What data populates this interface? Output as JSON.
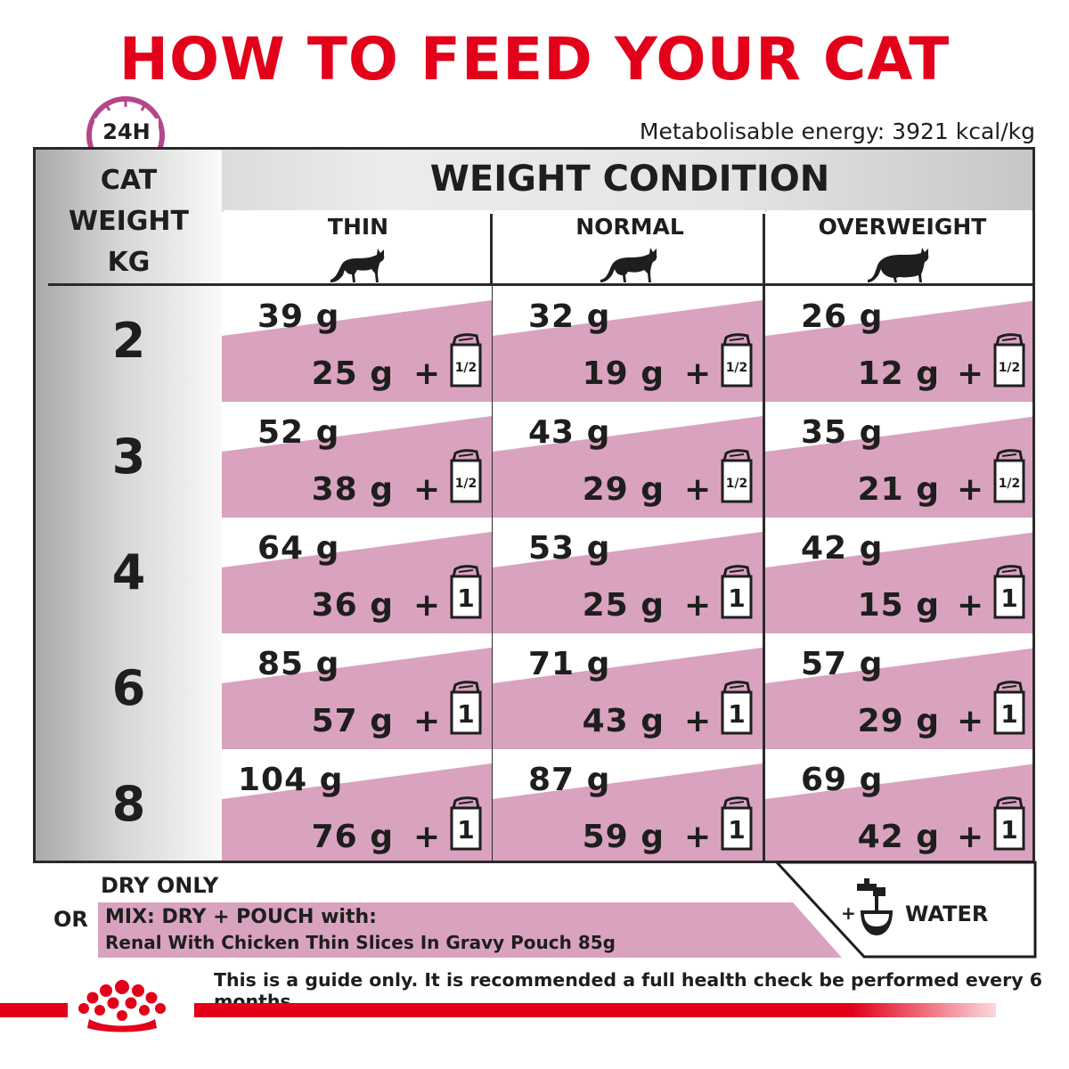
{
  "title": "HOW TO FEED YOUR CAT",
  "energy": "Metabolisable energy: 3921 kcal/kg",
  "clock_label": "24H",
  "table": {
    "condition_title": "WEIGHT CONDITION",
    "weight_header": [
      "CAT",
      "WEIGHT",
      "KG"
    ],
    "columns": [
      "THIN",
      "NORMAL",
      "OVERWEIGHT"
    ],
    "rows": [
      {
        "weight": "2",
        "cells": [
          {
            "dry": "39 g",
            "mix": "25 g",
            "pouch": "1/2"
          },
          {
            "dry": "32 g",
            "mix": "19 g",
            "pouch": "1/2"
          },
          {
            "dry": "26 g",
            "mix": "12 g",
            "pouch": "1/2"
          }
        ]
      },
      {
        "weight": "3",
        "cells": [
          {
            "dry": "52 g",
            "mix": "38 g",
            "pouch": "1/2"
          },
          {
            "dry": "43 g",
            "mix": "29 g",
            "pouch": "1/2"
          },
          {
            "dry": "35 g",
            "mix": "21 g",
            "pouch": "1/2"
          }
        ]
      },
      {
        "weight": "4",
        "cells": [
          {
            "dry": "64 g",
            "mix": "36 g",
            "pouch": "1"
          },
          {
            "dry": "53 g",
            "mix": "25 g",
            "pouch": "1"
          },
          {
            "dry": "42 g",
            "mix": "15 g",
            "pouch": "1"
          }
        ]
      },
      {
        "weight": "6",
        "cells": [
          {
            "dry": "85 g",
            "mix": "57 g",
            "pouch": "1"
          },
          {
            "dry": "71 g",
            "mix": "43 g",
            "pouch": "1"
          },
          {
            "dry": "57 g",
            "mix": "29 g",
            "pouch": "1"
          }
        ]
      },
      {
        "weight": "8",
        "cells": [
          {
            "dry": "104 g",
            "mix": "76 g",
            "pouch": "1"
          },
          {
            "dry": "87 g",
            "mix": "59 g",
            "pouch": "1"
          },
          {
            "dry": "69 g",
            "mix": "42 g",
            "pouch": "1"
          }
        ]
      }
    ],
    "plus_sign": "+"
  },
  "legend": {
    "dry_only": "DRY ONLY",
    "or": "OR",
    "mix_title": "MIX: DRY + POUCH with:",
    "mix_product": "Renal With Chicken Thin Slices In Gravy Pouch 85g",
    "plus": "+",
    "water": "WATER"
  },
  "disclaimer": "This is a guide only. It is recommended a full health check be performed every 6 months.",
  "colors": {
    "brand_red": "#e2001a",
    "pink_band": "#d9a3bf",
    "clock_purple": "#b5468a"
  },
  "icons": [
    "clock-icon",
    "cat-thin-icon",
    "cat-normal-icon",
    "cat-overweight-icon",
    "pouch-icon",
    "water-bowl-icon",
    "crown-logo"
  ]
}
